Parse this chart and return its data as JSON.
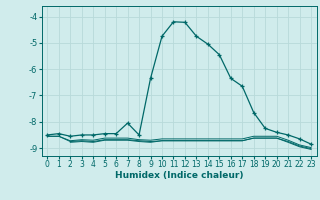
{
  "title": "",
  "xlabel": "Humidex (Indice chaleur)",
  "ylabel": "",
  "bg_color": "#d0ecec",
  "grid_color": "#b8dada",
  "line_color": "#006868",
  "xlim": [
    -0.5,
    23.5
  ],
  "ylim": [
    -9.3,
    -3.6
  ],
  "yticks": [
    -9,
    -8,
    -7,
    -6,
    -5,
    -4
  ],
  "xticks": [
    0,
    1,
    2,
    3,
    4,
    5,
    6,
    7,
    8,
    9,
    10,
    11,
    12,
    13,
    14,
    15,
    16,
    17,
    18,
    19,
    20,
    21,
    22,
    23
  ],
  "line1_x": [
    0,
    1,
    2,
    3,
    4,
    5,
    6,
    7,
    8,
    9,
    10,
    11,
    12,
    13,
    14,
    15,
    16,
    17,
    18,
    19,
    20,
    21,
    22,
    23
  ],
  "line1_y": [
    -8.5,
    -8.45,
    -8.55,
    -8.5,
    -8.5,
    -8.45,
    -8.45,
    -8.05,
    -8.5,
    -6.35,
    -4.75,
    -4.2,
    -4.22,
    -4.75,
    -5.05,
    -5.45,
    -6.35,
    -6.65,
    -7.65,
    -8.25,
    -8.4,
    -8.5,
    -8.65,
    -8.85
  ],
  "line2_x": [
    0,
    1,
    2,
    3,
    4,
    5,
    6,
    7,
    8,
    9,
    10,
    11,
    12,
    13,
    14,
    15,
    16,
    17,
    18,
    19,
    20,
    21,
    22,
    23
  ],
  "line2_y": [
    -8.55,
    -8.55,
    -8.72,
    -8.68,
    -8.7,
    -8.62,
    -8.62,
    -8.62,
    -8.68,
    -8.7,
    -8.65,
    -8.65,
    -8.65,
    -8.65,
    -8.65,
    -8.65,
    -8.65,
    -8.65,
    -8.55,
    -8.55,
    -8.55,
    -8.7,
    -8.88,
    -8.98
  ],
  "line3_x": [
    0,
    1,
    2,
    3,
    4,
    5,
    6,
    7,
    8,
    9,
    10,
    11,
    12,
    13,
    14,
    15,
    16,
    17,
    18,
    19,
    20,
    21,
    22,
    23
  ],
  "line3_y": [
    -8.55,
    -8.55,
    -8.75,
    -8.72,
    -8.75,
    -8.68,
    -8.68,
    -8.68,
    -8.72,
    -8.75,
    -8.72,
    -8.72,
    -8.72,
    -8.72,
    -8.72,
    -8.72,
    -8.72,
    -8.72,
    -8.62,
    -8.62,
    -8.62,
    -8.75,
    -8.92,
    -9.02
  ],
  "line4_x": [
    2,
    3,
    4,
    5,
    6,
    7,
    8,
    9,
    10,
    11,
    12,
    13,
    14,
    15,
    16,
    17,
    18,
    19,
    20,
    21,
    22,
    23
  ],
  "line4_y": [
    -8.78,
    -8.75,
    -8.78,
    -8.7,
    -8.7,
    -8.7,
    -8.75,
    -8.78,
    -8.72,
    -8.72,
    -8.72,
    -8.72,
    -8.72,
    -8.72,
    -8.72,
    -8.72,
    -8.62,
    -8.62,
    -8.62,
    -8.78,
    -8.95,
    -9.05
  ]
}
